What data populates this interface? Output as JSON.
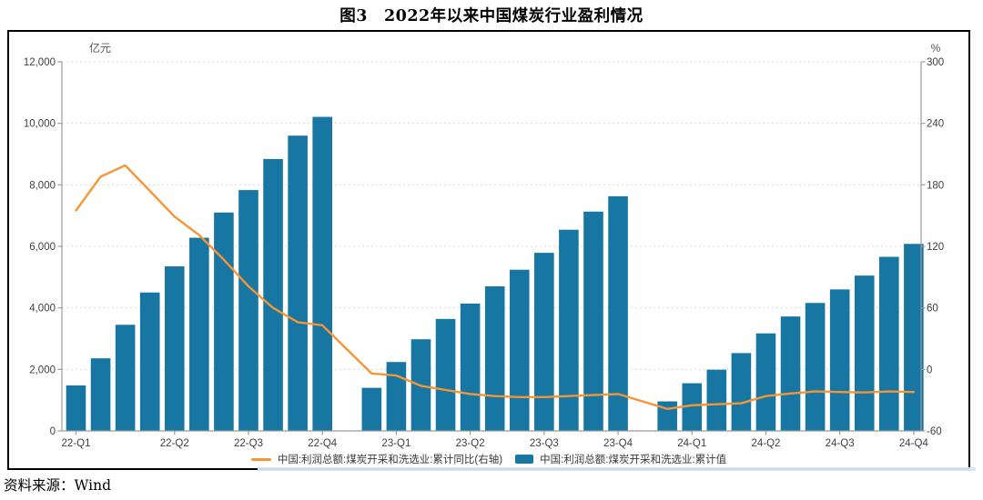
{
  "title": "图3　2022年以来中国煤炭行业盈利情况",
  "source": "资料来源：Wind",
  "legend": {
    "line_label": "中国:利润总额:煤炭开采和洗选业:累计同比(右轴)",
    "bar_label": "中国:利润总额:煤炭开采和洗选业:累计值"
  },
  "colors": {
    "bar": "#1776A2",
    "line": "#F79434",
    "grid": "#DADADA",
    "axis": "#9B9B9B",
    "tick_text": "#3F3F3F",
    "frame": "#000000",
    "highlight_strip": "#D9E5F3"
  },
  "chart_data": {
    "type": "bar+line",
    "title": "图3　2022年以来中国煤炭行业盈利情况",
    "grid": "horizontal-dashed",
    "legend_position": "bottom-center",
    "months": [
      "2022-02",
      "2022-03",
      "2022-04",
      "2022-05",
      "2022-06",
      "2022-07",
      "2022-08",
      "2022-09",
      "2022-10",
      "2022-11",
      "2022-12",
      "2023-02",
      "2023-03",
      "2023-04",
      "2023-05",
      "2023-06",
      "2023-07",
      "2023-08",
      "2023-09",
      "2023-10",
      "2023-11",
      "2023-12",
      "2024-02",
      "2024-03",
      "2024-04",
      "2024-05",
      "2024-06",
      "2024-07",
      "2024-08",
      "2024-09",
      "2024-10",
      "2024-11",
      "2024-12"
    ],
    "slots": [
      0,
      1,
      2,
      3,
      4,
      5,
      6,
      7,
      8,
      9,
      10,
      12,
      13,
      14,
      15,
      16,
      17,
      18,
      19,
      20,
      21,
      22,
      24,
      25,
      26,
      27,
      28,
      29,
      30,
      31,
      32,
      33,
      34
    ],
    "series": [
      {
        "name": "中国:利润总额:煤炭开采和洗选业:累计值",
        "type": "bar",
        "axis": "left",
        "color": "#1776A2",
        "values": [
          1480,
          2360,
          3450,
          4500,
          5350,
          6280,
          7100,
          7830,
          8840,
          9600,
          10210,
          1400,
          2240,
          2980,
          3640,
          4140,
          4700,
          5240,
          5790,
          6540,
          7130,
          7630,
          960,
          1550,
          1990,
          2530,
          3170,
          3720,
          4160,
          4600,
          5050,
          5660,
          6080
        ]
      },
      {
        "name": "中国:利润总额:煤炭开采和洗选业:累计同比(右轴)",
        "type": "line",
        "axis": "right",
        "color": "#F79434",
        "values": [
          155,
          188,
          199,
          174,
          149,
          131,
          107,
          81,
          60,
          46,
          43,
          -4,
          -6,
          -16,
          -20,
          -24,
          -26,
          -27,
          -27,
          -26,
          -25,
          -24,
          -38.5,
          -35,
          -34,
          -33,
          -26,
          -23.5,
          -21.5,
          -22,
          -22.5,
          -21.5,
          -22
        ]
      }
    ],
    "left_axis": {
      "title": "亿元",
      "min": 0,
      "max": 12000,
      "step": 2000,
      "ticks": [
        "0",
        "2,000",
        "4,000",
        "6,000",
        "8,000",
        "10,000",
        "12,000"
      ]
    },
    "right_axis": {
      "title": "%",
      "min": -60,
      "max": 300,
      "step": 60,
      "ticks": [
        "-60",
        "0",
        "60",
        "120",
        "180",
        "240",
        "300"
      ]
    },
    "x_axis": {
      "tick_labels": [
        "22-Q1",
        "22-Q2",
        "22-Q3",
        "22-Q4",
        "23-Q1",
        "23-Q2",
        "23-Q3",
        "23-Q4",
        "24-Q1",
        "24-Q2",
        "24-Q3",
        "24-Q4"
      ],
      "tick_slots": [
        0,
        4,
        7,
        10,
        13,
        16,
        19,
        22,
        25,
        28,
        31,
        34
      ]
    }
  }
}
